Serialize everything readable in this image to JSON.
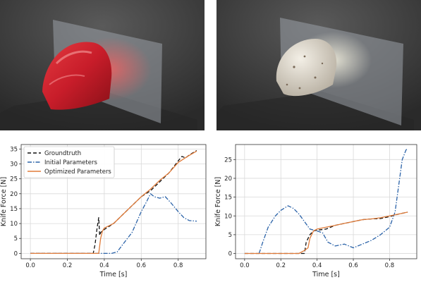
{
  "renders": [
    {
      "subject": "apple being cut by a knife blade"
    },
    {
      "subject": "peeled potato being cut by a knife blade"
    }
  ],
  "chart_data": [
    {
      "type": "line",
      "title": "",
      "xlabel": "Time [s]",
      "ylabel": "Knife Force [N]",
      "xlim": [
        -0.05,
        0.95
      ],
      "ylim": [
        -1.8,
        36.5
      ],
      "xticks": [
        "0.0",
        "0.2",
        "0.4",
        "0.6",
        "0.8"
      ],
      "yticks": [
        "0",
        "5",
        "10",
        "15",
        "20",
        "25",
        "30",
        "35"
      ],
      "grid": true,
      "legend": "upper-left",
      "series": [
        {
          "name": "Groundtruth",
          "style": "dashed",
          "color": "#111111",
          "points": [
            [
              0.0,
              0
            ],
            [
              0.34,
              0
            ],
            [
              0.35,
              3
            ],
            [
              0.36,
              8
            ],
            [
              0.37,
              12
            ],
            [
              0.375,
              6
            ],
            [
              0.38,
              7
            ],
            [
              0.4,
              8
            ],
            [
              0.45,
              10
            ],
            [
              0.5,
              13
            ],
            [
              0.55,
              16
            ],
            [
              0.6,
              19
            ],
            [
              0.65,
              21
            ],
            [
              0.7,
              24
            ],
            [
              0.75,
              27
            ],
            [
              0.8,
              31
            ],
            [
              0.82,
              32.5
            ],
            [
              0.84,
              32
            ],
            [
              0.86,
              33
            ],
            [
              0.9,
              34.5
            ]
          ]
        },
        {
          "name": "Initial Parameters",
          "style": "dashdot",
          "color": "#2a62a8",
          "points": [
            [
              0.0,
              0
            ],
            [
              0.44,
              0
            ],
            [
              0.47,
              0.5
            ],
            [
              0.5,
              3
            ],
            [
              0.55,
              7
            ],
            [
              0.6,
              14
            ],
            [
              0.63,
              17.5
            ],
            [
              0.65,
              20
            ],
            [
              0.67,
              19
            ],
            [
              0.7,
              18.5
            ],
            [
              0.73,
              19
            ],
            [
              0.76,
              17
            ],
            [
              0.8,
              14
            ],
            [
              0.83,
              12
            ],
            [
              0.86,
              11
            ],
            [
              0.9,
              10.8
            ]
          ]
        },
        {
          "name": "Optimized Parameters",
          "style": "solid",
          "color": "#e07b39",
          "points": [
            [
              0.0,
              0
            ],
            [
              0.37,
              0
            ],
            [
              0.38,
              5
            ],
            [
              0.39,
              7.5
            ],
            [
              0.4,
              8.5
            ],
            [
              0.45,
              10
            ],
            [
              0.5,
              13
            ],
            [
              0.55,
              16
            ],
            [
              0.6,
              19
            ],
            [
              0.65,
              21.5
            ],
            [
              0.7,
              24.5
            ],
            [
              0.75,
              27
            ],
            [
              0.8,
              30.5
            ],
            [
              0.85,
              32.5
            ],
            [
              0.9,
              34.3
            ]
          ]
        }
      ]
    },
    {
      "type": "line",
      "title": "",
      "xlabel": "Time [s]",
      "ylabel": "Knife Force [N]",
      "xlim": [
        -0.05,
        0.95
      ],
      "ylim": [
        -1.4,
        29.0
      ],
      "xticks": [
        "0.0",
        "0.2",
        "0.4",
        "0.6",
        "0.8"
      ],
      "yticks": [
        "0",
        "5",
        "10",
        "15",
        "20",
        "25"
      ],
      "grid": true,
      "legend": "none",
      "series": [
        {
          "name": "Groundtruth",
          "style": "dashed",
          "color": "#111111",
          "points": [
            [
              0.0,
              0
            ],
            [
              0.33,
              0
            ],
            [
              0.34,
              3
            ],
            [
              0.36,
              5
            ],
            [
              0.38,
              6
            ],
            [
              0.4,
              6.2
            ],
            [
              0.45,
              6.5
            ],
            [
              0.5,
              7.5
            ],
            [
              0.55,
              8
            ],
            [
              0.6,
              8.5
            ],
            [
              0.65,
              9
            ],
            [
              0.7,
              9.2
            ],
            [
              0.75,
              9.3
            ],
            [
              0.8,
              9.8
            ],
            [
              0.85,
              10.5
            ],
            [
              0.9,
              11
            ]
          ]
        },
        {
          "name": "Initial Parameters",
          "style": "dashdot",
          "color": "#2a62a8",
          "points": [
            [
              0.08,
              0
            ],
            [
              0.1,
              3
            ],
            [
              0.13,
              7
            ],
            [
              0.17,
              10
            ],
            [
              0.2,
              11.5
            ],
            [
              0.24,
              12.7
            ],
            [
              0.27,
              12
            ],
            [
              0.3,
              10.5
            ],
            [
              0.33,
              8.5
            ],
            [
              0.36,
              6.5
            ],
            [
              0.4,
              6
            ],
            [
              0.43,
              5.5
            ],
            [
              0.46,
              3
            ],
            [
              0.5,
              2
            ],
            [
              0.55,
              2.5
            ],
            [
              0.6,
              1.5
            ],
            [
              0.65,
              2.5
            ],
            [
              0.7,
              3.5
            ],
            [
              0.75,
              5
            ],
            [
              0.8,
              7
            ],
            [
              0.83,
              11
            ],
            [
              0.85,
              18
            ],
            [
              0.87,
              25
            ],
            [
              0.89,
              27.5
            ],
            [
              0.9,
              28
            ]
          ]
        },
        {
          "name": "Optimized Parameters",
          "style": "solid",
          "color": "#e07b39",
          "points": [
            [
              0.0,
              0
            ],
            [
              0.3,
              0
            ],
            [
              0.33,
              0.8
            ],
            [
              0.35,
              1.5
            ],
            [
              0.36,
              4
            ],
            [
              0.38,
              6
            ],
            [
              0.4,
              6.5
            ],
            [
              0.45,
              7
            ],
            [
              0.5,
              7.5
            ],
            [
              0.55,
              8
            ],
            [
              0.6,
              8.5
            ],
            [
              0.65,
              9
            ],
            [
              0.7,
              9.2
            ],
            [
              0.75,
              9.5
            ],
            [
              0.8,
              10
            ],
            [
              0.85,
              10.5
            ],
            [
              0.9,
              11
            ]
          ]
        }
      ]
    }
  ]
}
